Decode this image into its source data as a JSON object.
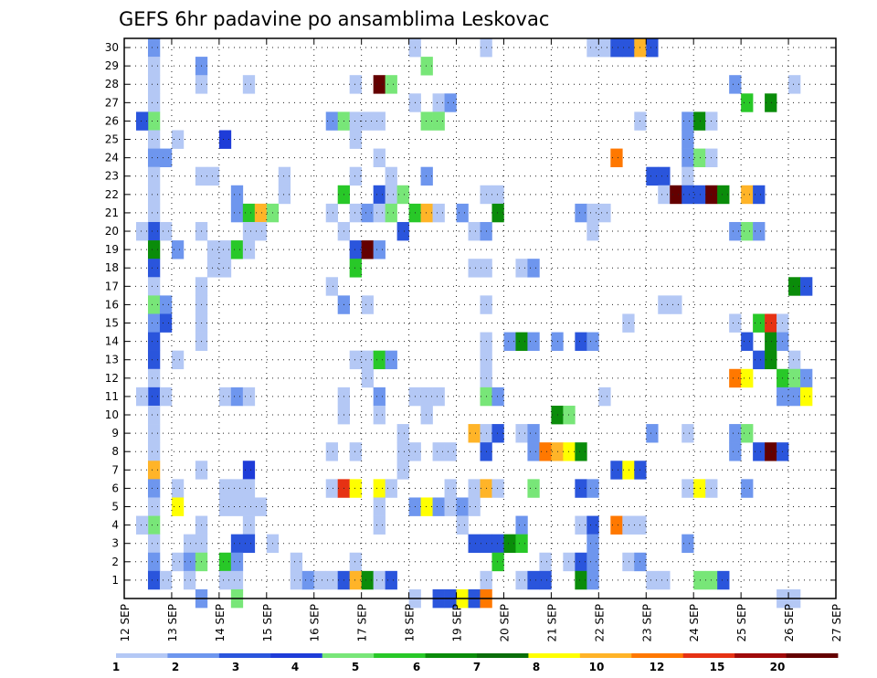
{
  "chart_data": {
    "type": "heatmap",
    "title": "GEFS 6hr padavine po ansamblima Leskovac",
    "xlabel": "",
    "ylabel": "",
    "x_ticks": [
      "12 SEP",
      "13 SEP",
      "14 SEP",
      "15 SEP",
      "16 SEP",
      "17 SEP",
      "18 SEP",
      "19 SEP",
      "20 SEP",
      "21 SEP",
      "22 SEP",
      "23 SEP",
      "24 SEP",
      "25 SEP",
      "26 SEP",
      "27 SEP"
    ],
    "y_ticks": [
      "1",
      "2",
      "3",
      "4",
      "5",
      "6",
      "7",
      "8",
      "9",
      "10",
      "11",
      "12",
      "13",
      "14",
      "15",
      "16",
      "17",
      "18",
      "19",
      "20",
      "21",
      "22",
      "23",
      "24",
      "25",
      "26",
      "27",
      "28",
      "29",
      "30"
    ],
    "xlim": [
      0,
      15
    ],
    "ylim": [
      0,
      30
    ],
    "steps_per_day": 4,
    "grid": true,
    "colorbar": {
      "labels": [
        "1",
        "2",
        "3",
        "4",
        "5",
        "6",
        "7",
        "8",
        "10",
        "12",
        "15",
        "20"
      ],
      "colors": [
        "#b4c8f5",
        "#6e96ee",
        "#2a55dc",
        "#1e3cd8",
        "#78e678",
        "#28c828",
        "#0a8c0a",
        "#0a6e0a",
        "#ffff00",
        "#ffb428",
        "#ff7800",
        "#e63214",
        "#a00a0a",
        "#640000"
      ]
    },
    "cells": [
      [
        2,
        30,
        1
      ],
      [
        2,
        29,
        0
      ],
      [
        2,
        28,
        0
      ],
      [
        2,
        27,
        0
      ],
      [
        2,
        26,
        4
      ],
      [
        2,
        25,
        0
      ],
      [
        2,
        24,
        1
      ],
      [
        2,
        23,
        0
      ],
      [
        2,
        22,
        0
      ],
      [
        2,
        21,
        0
      ],
      [
        2,
        20,
        2
      ],
      [
        2,
        19,
        6
      ],
      [
        2,
        18,
        2
      ],
      [
        2,
        17,
        0
      ],
      [
        2,
        16,
        4
      ],
      [
        2,
        15,
        1
      ],
      [
        2,
        14,
        2
      ],
      [
        2,
        13,
        2
      ],
      [
        2,
        12,
        0
      ],
      [
        2,
        11,
        2
      ],
      [
        2,
        10,
        0
      ],
      [
        2,
        9,
        0
      ],
      [
        2,
        8,
        0
      ],
      [
        2,
        7,
        9
      ],
      [
        2,
        6,
        1
      ],
      [
        2,
        5,
        0
      ],
      [
        2,
        4,
        4
      ],
      [
        2,
        3,
        0
      ],
      [
        2,
        2,
        1
      ],
      [
        2,
        1,
        2
      ],
      [
        1,
        26,
        2
      ],
      [
        1,
        20,
        0
      ],
      [
        1,
        11,
        0
      ],
      [
        1,
        4,
        0
      ],
      [
        3,
        16,
        1
      ],
      [
        3,
        15,
        2
      ],
      [
        3,
        20,
        0
      ],
      [
        3,
        24,
        1
      ],
      [
        3,
        11,
        0
      ],
      [
        3,
        1,
        0
      ],
      [
        4,
        19,
        1
      ],
      [
        4,
        6,
        0
      ],
      [
        4,
        5,
        8
      ],
      [
        4,
        2,
        0
      ],
      [
        4,
        13,
        0
      ],
      [
        4,
        25,
        0
      ],
      [
        5,
        3,
        0
      ],
      [
        5,
        2,
        1
      ],
      [
        5,
        1,
        0
      ],
      [
        6,
        29,
        1
      ],
      [
        6,
        28,
        0
      ],
      [
        6,
        23,
        0
      ],
      [
        6,
        20,
        0
      ],
      [
        6,
        17,
        0
      ],
      [
        6,
        16,
        0
      ],
      [
        6,
        15,
        0
      ],
      [
        6,
        14,
        0
      ],
      [
        6,
        7,
        0
      ],
      [
        6,
        4,
        0
      ],
      [
        6,
        3,
        0
      ],
      [
        6,
        2,
        4
      ],
      [
        6,
        0,
        1
      ],
      [
        7,
        23,
        0
      ],
      [
        7,
        19,
        0
      ],
      [
        7,
        18,
        0
      ],
      [
        8,
        25,
        3
      ],
      [
        8,
        19,
        0
      ],
      [
        8,
        18,
        0
      ],
      [
        8,
        11,
        0
      ],
      [
        8,
        6,
        0
      ],
      [
        8,
        5,
        0
      ],
      [
        8,
        2,
        5
      ],
      [
        8,
        1,
        0
      ],
      [
        9,
        22,
        1
      ],
      [
        9,
        21,
        1
      ],
      [
        9,
        19,
        5
      ],
      [
        9,
        11,
        1
      ],
      [
        9,
        6,
        0
      ],
      [
        9,
        5,
        0
      ],
      [
        9,
        3,
        2
      ],
      [
        9,
        2,
        1
      ],
      [
        9,
        1,
        0
      ],
      [
        9,
        0,
        4
      ],
      [
        10,
        21,
        5
      ],
      [
        10,
        20,
        0
      ],
      [
        10,
        19,
        0
      ],
      [
        10,
        7,
        3
      ],
      [
        10,
        6,
        0
      ],
      [
        10,
        5,
        0
      ],
      [
        10,
        4,
        0
      ],
      [
        10,
        3,
        2
      ],
      [
        10,
        28,
        0
      ],
      [
        10,
        11,
        0
      ],
      [
        11,
        21,
        9
      ],
      [
        11,
        20,
        0
      ],
      [
        11,
        5,
        0
      ],
      [
        12,
        21,
        4
      ],
      [
        12,
        3,
        0
      ],
      [
        13,
        22,
        0
      ],
      [
        13,
        23,
        0
      ],
      [
        14,
        1,
        0
      ],
      [
        14,
        2,
        0
      ],
      [
        15,
        1,
        1
      ],
      [
        16,
        1,
        0
      ],
      [
        17,
        26,
        1
      ],
      [
        17,
        21,
        0
      ],
      [
        17,
        17,
        0
      ],
      [
        17,
        8,
        0
      ],
      [
        17,
        6,
        0
      ],
      [
        17,
        1,
        0
      ],
      [
        18,
        26,
        4
      ],
      [
        18,
        22,
        5
      ],
      [
        18,
        20,
        0
      ],
      [
        18,
        16,
        1
      ],
      [
        18,
        11,
        0
      ],
      [
        18,
        10,
        0
      ],
      [
        18,
        6,
        11
      ],
      [
        18,
        1,
        2
      ],
      [
        19,
        28,
        0
      ],
      [
        19,
        26,
        0
      ],
      [
        19,
        25,
        0
      ],
      [
        19,
        23,
        0
      ],
      [
        19,
        21,
        0
      ],
      [
        19,
        19,
        2
      ],
      [
        19,
        18,
        5
      ],
      [
        19,
        13,
        0
      ],
      [
        19,
        8,
        0
      ],
      [
        19,
        6,
        8
      ],
      [
        19,
        2,
        0
      ],
      [
        19,
        1,
        9
      ],
      [
        20,
        26,
        0
      ],
      [
        20,
        21,
        1
      ],
      [
        20,
        19,
        13
      ],
      [
        20,
        16,
        0
      ],
      [
        20,
        13,
        0
      ],
      [
        20,
        12,
        0
      ],
      [
        20,
        1,
        6
      ],
      [
        21,
        28,
        13
      ],
      [
        21,
        26,
        0
      ],
      [
        21,
        24,
        0
      ],
      [
        21,
        22,
        2
      ],
      [
        21,
        21,
        0
      ],
      [
        21,
        19,
        1
      ],
      [
        21,
        13,
        5
      ],
      [
        21,
        11,
        1
      ],
      [
        21,
        10,
        0
      ],
      [
        21,
        6,
        8
      ],
      [
        21,
        5,
        0
      ],
      [
        21,
        4,
        0
      ],
      [
        21,
        1,
        0
      ],
      [
        22,
        28,
        4
      ],
      [
        22,
        23,
        0
      ],
      [
        22,
        22,
        0
      ],
      [
        22,
        21,
        4
      ],
      [
        22,
        13,
        1
      ],
      [
        22,
        6,
        0
      ],
      [
        22,
        1,
        2
      ],
      [
        23,
        22,
        4
      ],
      [
        23,
        20,
        2
      ],
      [
        23,
        8,
        0
      ],
      [
        23,
        7,
        0
      ],
      [
        23,
        9,
        0
      ],
      [
        24,
        30,
        0
      ],
      [
        24,
        27,
        0
      ],
      [
        24,
        21,
        5
      ],
      [
        24,
        11,
        0
      ],
      [
        24,
        8,
        0
      ],
      [
        24,
        5,
        1
      ],
      [
        24,
        0,
        0
      ],
      [
        25,
        29,
        4
      ],
      [
        25,
        26,
        4
      ],
      [
        25,
        23,
        1
      ],
      [
        25,
        21,
        9
      ],
      [
        25,
        11,
        0
      ],
      [
        25,
        10,
        0
      ],
      [
        25,
        5,
        8
      ],
      [
        26,
        27,
        0
      ],
      [
        26,
        26,
        4
      ],
      [
        26,
        21,
        0
      ],
      [
        26,
        11,
        0
      ],
      [
        26,
        8,
        0
      ],
      [
        26,
        5,
        1
      ],
      [
        26,
        0,
        2
      ],
      [
        27,
        27,
        1
      ],
      [
        27,
        8,
        0
      ],
      [
        27,
        6,
        0
      ],
      [
        27,
        5,
        0
      ],
      [
        27,
        0,
        2
      ],
      [
        28,
        21,
        1
      ],
      [
        28,
        5,
        1
      ],
      [
        28,
        4,
        0
      ],
      [
        28,
        0,
        8
      ],
      [
        29,
        20,
        0
      ],
      [
        29,
        18,
        0
      ],
      [
        29,
        9,
        9
      ],
      [
        29,
        6,
        0
      ],
      [
        29,
        5,
        0
      ],
      [
        29,
        3,
        2
      ],
      [
        29,
        0,
        2
      ],
      [
        30,
        30,
        0
      ],
      [
        30,
        22,
        0
      ],
      [
        30,
        20,
        1
      ],
      [
        30,
        18,
        0
      ],
      [
        30,
        16,
        0
      ],
      [
        30,
        14,
        0
      ],
      [
        30,
        13,
        0
      ],
      [
        30,
        12,
        0
      ],
      [
        30,
        11,
        4
      ],
      [
        30,
        9,
        0
      ],
      [
        30,
        8,
        2
      ],
      [
        30,
        6,
        9
      ],
      [
        30,
        3,
        2
      ],
      [
        30,
        1,
        0
      ],
      [
        30,
        0,
        10
      ],
      [
        31,
        22,
        0
      ],
      [
        31,
        21,
        6
      ],
      [
        31,
        11,
        1
      ],
      [
        31,
        9,
        2
      ],
      [
        31,
        6,
        0
      ],
      [
        31,
        3,
        2
      ],
      [
        31,
        2,
        5
      ],
      [
        32,
        14,
        1
      ],
      [
        32,
        3,
        6
      ],
      [
        33,
        18,
        0
      ],
      [
        33,
        14,
        6
      ],
      [
        33,
        9,
        0
      ],
      [
        33,
        4,
        1
      ],
      [
        33,
        3,
        5
      ],
      [
        33,
        1,
        0
      ],
      [
        34,
        18,
        1
      ],
      [
        34,
        14,
        1
      ],
      [
        34,
        9,
        1
      ],
      [
        34,
        8,
        1
      ],
      [
        34,
        6,
        4
      ],
      [
        34,
        1,
        2
      ],
      [
        35,
        8,
        10
      ],
      [
        35,
        2,
        0
      ],
      [
        35,
        1,
        2
      ],
      [
        36,
        8,
        9
      ],
      [
        36,
        10,
        6
      ],
      [
        36,
        14,
        1
      ],
      [
        37,
        8,
        8
      ],
      [
        37,
        10,
        4
      ],
      [
        37,
        2,
        0
      ],
      [
        38,
        21,
        1
      ],
      [
        38,
        14,
        2
      ],
      [
        38,
        8,
        6
      ],
      [
        38,
        6,
        2
      ],
      [
        38,
        4,
        0
      ],
      [
        38,
        2,
        2
      ],
      [
        38,
        1,
        6
      ],
      [
        39,
        30,
        0
      ],
      [
        39,
        21,
        0
      ],
      [
        39,
        20,
        0
      ],
      [
        39,
        14,
        1
      ],
      [
        39,
        6,
        1
      ],
      [
        39,
        4,
        2
      ],
      [
        39,
        3,
        1
      ],
      [
        39,
        2,
        1
      ],
      [
        39,
        1,
        1
      ],
      [
        40,
        30,
        0
      ],
      [
        40,
        21,
        0
      ],
      [
        40,
        11,
        0
      ],
      [
        41,
        30,
        2
      ],
      [
        41,
        24,
        10
      ],
      [
        41,
        7,
        2
      ],
      [
        41,
        4,
        10
      ],
      [
        42,
        30,
        2
      ],
      [
        42,
        15,
        0
      ],
      [
        42,
        7,
        8
      ],
      [
        42,
        4,
        0
      ],
      [
        42,
        2,
        0
      ],
      [
        43,
        30,
        9
      ],
      [
        43,
        26,
        0
      ],
      [
        43,
        7,
        2
      ],
      [
        43,
        4,
        0
      ],
      [
        43,
        2,
        1
      ],
      [
        44,
        30,
        2
      ],
      [
        44,
        23,
        2
      ],
      [
        44,
        1,
        0
      ],
      [
        44,
        9,
        1
      ],
      [
        45,
        23,
        2
      ],
      [
        45,
        22,
        0
      ],
      [
        45,
        16,
        0
      ],
      [
        45,
        1,
        0
      ],
      [
        46,
        22,
        13
      ],
      [
        46,
        16,
        0
      ],
      [
        47,
        26,
        1
      ],
      [
        47,
        25,
        1
      ],
      [
        47,
        24,
        1
      ],
      [
        47,
        23,
        0
      ],
      [
        47,
        22,
        2
      ],
      [
        47,
        9,
        0
      ],
      [
        47,
        6,
        0
      ],
      [
        47,
        3,
        1
      ],
      [
        48,
        26,
        6
      ],
      [
        48,
        24,
        4
      ],
      [
        48,
        22,
        2
      ],
      [
        48,
        6,
        8
      ],
      [
        48,
        1,
        4
      ],
      [
        49,
        26,
        0
      ],
      [
        49,
        24,
        0
      ],
      [
        49,
        22,
        13
      ],
      [
        49,
        6,
        0
      ],
      [
        49,
        1,
        4
      ],
      [
        50,
        22,
        6
      ],
      [
        50,
        1,
        2
      ],
      [
        51,
        28,
        1
      ],
      [
        51,
        20,
        1
      ],
      [
        51,
        15,
        0
      ],
      [
        51,
        12,
        10
      ],
      [
        51,
        9,
        1
      ],
      [
        51,
        8,
        1
      ],
      [
        52,
        27,
        5
      ],
      [
        52,
        22,
        9
      ],
      [
        52,
        20,
        4
      ],
      [
        52,
        14,
        2
      ],
      [
        52,
        12,
        8
      ],
      [
        52,
        9,
        4
      ],
      [
        52,
        6,
        1
      ],
      [
        53,
        22,
        2
      ],
      [
        53,
        20,
        1
      ],
      [
        53,
        15,
        5
      ],
      [
        53,
        13,
        2
      ],
      [
        53,
        8,
        2
      ],
      [
        54,
        27,
        6
      ],
      [
        54,
        15,
        11
      ],
      [
        54,
        14,
        6
      ],
      [
        54,
        13,
        6
      ],
      [
        54,
        8,
        13
      ],
      [
        55,
        15,
        0
      ],
      [
        55,
        14,
        1
      ],
      [
        55,
        12,
        5
      ],
      [
        55,
        11,
        1
      ],
      [
        55,
        8,
        2
      ],
      [
        55,
        0,
        0
      ],
      [
        56,
        28,
        0
      ],
      [
        56,
        17,
        6
      ],
      [
        56,
        13,
        0
      ],
      [
        56,
        12,
        4
      ],
      [
        56,
        11,
        1
      ],
      [
        56,
        0,
        0
      ],
      [
        57,
        17,
        2
      ],
      [
        57,
        12,
        1
      ],
      [
        57,
        11,
        8
      ]
    ]
  }
}
